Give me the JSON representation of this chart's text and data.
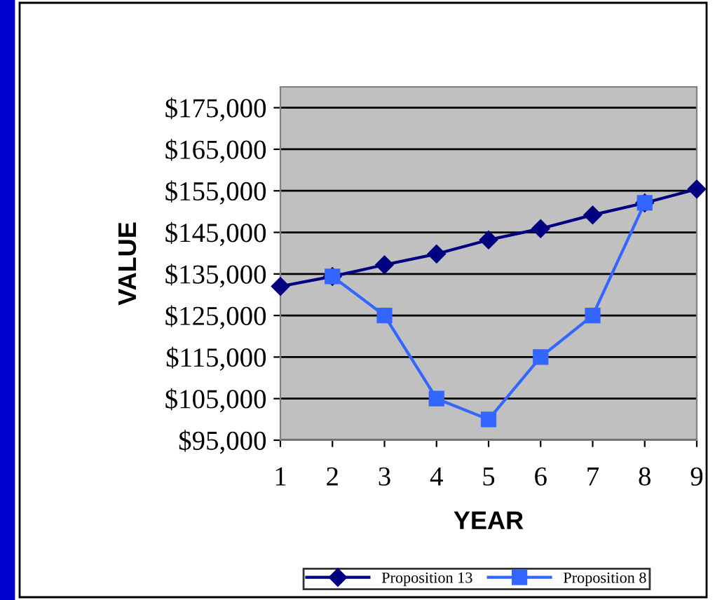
{
  "chart_data": {
    "type": "line",
    "xlabel": "YEAR",
    "ylabel": "VALUE",
    "x": [
      1,
      2,
      3,
      4,
      5,
      6,
      7,
      8,
      9
    ],
    "series": [
      {
        "name": "Proposition 13",
        "color": "#000080",
        "marker": "diamond",
        "values": [
          132000,
          134400,
          137200,
          139800,
          143200,
          145900,
          149200,
          152100,
          155400
        ]
      },
      {
        "name": "Proposition 8",
        "color": "#3366ff",
        "marker": "square",
        "values": [
          null,
          134400,
          125000,
          105000,
          100000,
          115000,
          125000,
          152100,
          null
        ]
      }
    ],
    "xlim": [
      1,
      9
    ],
    "xticks": [
      1,
      2,
      3,
      4,
      5,
      6,
      7,
      8,
      9
    ],
    "ylim": [
      95000,
      180000
    ],
    "yticks": [
      {
        "value": 95000,
        "label": "$95,000"
      },
      {
        "value": 105000,
        "label": "$105,000"
      },
      {
        "value": 115000,
        "label": "$115,000"
      },
      {
        "value": 125000,
        "label": "$125,000"
      },
      {
        "value": 135000,
        "label": "$135,000"
      },
      {
        "value": 145000,
        "label": "$145,000"
      },
      {
        "value": 155000,
        "label": "$155,000"
      },
      {
        "value": 165000,
        "label": "$165,000"
      },
      {
        "value": 175000,
        "label": "$175,000"
      }
    ],
    "grid": "y",
    "legend": "bottom",
    "line_style": "solid"
  }
}
